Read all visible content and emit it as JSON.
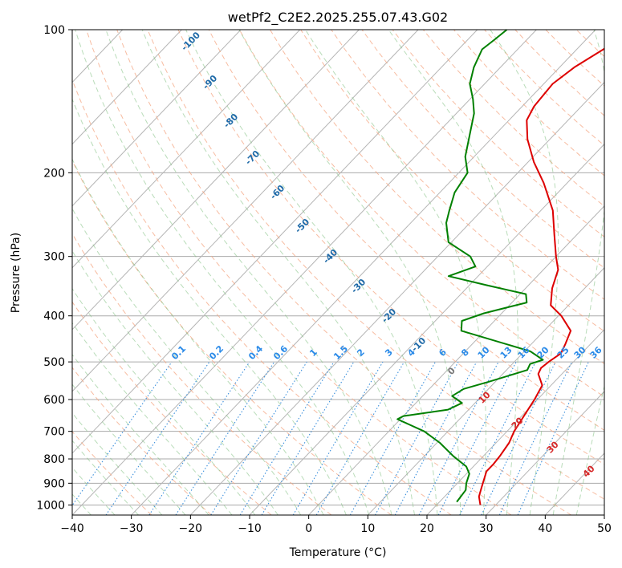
{
  "chart_data": {
    "type": "line",
    "title": "wetPf2_C2E2.2025.255.07.43.G02",
    "xlabel": "Temperature (°C)",
    "ylabel": "Pressure (hPa)",
    "xlim": [
      -40,
      50
    ],
    "ylim": [
      1050,
      100
    ],
    "x_ticks": [
      -40,
      -30,
      -20,
      -10,
      0,
      10,
      20,
      30,
      40,
      50
    ],
    "y_ticks": [
      1000,
      900,
      800,
      700,
      600,
      500,
      400,
      300,
      200,
      100
    ],
    "y_scale": "log",
    "skew": "skew-T",
    "series": [
      {
        "name": "",
        "color": "#dd0000",
        "points": [
          [
            27.4,
            1000
          ],
          [
            25.8,
            960
          ],
          [
            24.8,
            920
          ],
          [
            23.8,
            880
          ],
          [
            23.0,
            850
          ],
          [
            23.0,
            820
          ],
          [
            22.8,
            790
          ],
          [
            22.2,
            740
          ],
          [
            21.2,
            700
          ],
          [
            20.2,
            640
          ],
          [
            19.5,
            600
          ],
          [
            18.5,
            560
          ],
          [
            16.0,
            530
          ],
          [
            15.5,
            515
          ],
          [
            15.8,
            500
          ],
          [
            16.5,
            480
          ],
          [
            15.8,
            460
          ],
          [
            14.5,
            430
          ],
          [
            10.5,
            400
          ],
          [
            7.0,
            380
          ],
          [
            4.5,
            350
          ],
          [
            2.5,
            320
          ],
          [
            0.0,
            300
          ],
          [
            -3.8,
            270
          ],
          [
            -8.0,
            240
          ],
          [
            -14.0,
            210
          ],
          [
            -19.0,
            190
          ],
          [
            -23.8,
            170
          ],
          [
            -27.0,
            155
          ],
          [
            -28.0,
            145
          ],
          [
            -28.5,
            130
          ],
          [
            -27.5,
            120
          ],
          [
            -25.5,
            110
          ],
          [
            -24.5,
            105
          ],
          [
            -24.0,
            100
          ]
        ]
      },
      {
        "name": "",
        "color": "#008000",
        "points": [
          [
            22.9,
            985
          ],
          [
            22.5,
            930
          ],
          [
            21.5,
            900
          ],
          [
            20.5,
            860
          ],
          [
            18.8,
            830
          ],
          [
            15.0,
            790
          ],
          [
            10.5,
            740
          ],
          [
            6.0,
            700
          ],
          [
            -0.5,
            660
          ],
          [
            0.0,
            650
          ],
          [
            6.5,
            630
          ],
          [
            7.8,
            610
          ],
          [
            5.0,
            590
          ],
          [
            5.8,
            570
          ],
          [
            9.0,
            550
          ],
          [
            13.5,
            520
          ],
          [
            13.0,
            505
          ],
          [
            14.5,
            495
          ],
          [
            11.0,
            475
          ],
          [
            -4.0,
            430
          ],
          [
            -5.5,
            410
          ],
          [
            -3.0,
            395
          ],
          [
            2.5,
            375
          ],
          [
            1.0,
            360
          ],
          [
            -7.0,
            345
          ],
          [
            -15.0,
            330
          ],
          [
            -12.0,
            315
          ],
          [
            -14.5,
            300
          ],
          [
            -20.5,
            280
          ],
          [
            -24.0,
            255
          ],
          [
            -25.5,
            240
          ],
          [
            -27.5,
            220
          ],
          [
            -28.5,
            200
          ],
          [
            -31.5,
            185
          ],
          [
            -34.5,
            165
          ],
          [
            -37.0,
            150
          ],
          [
            -39.5,
            140
          ],
          [
            -42.5,
            130
          ],
          [
            -44.5,
            120
          ],
          [
            -46.0,
            110
          ],
          [
            -45.5,
            105
          ],
          [
            -45.0,
            100
          ]
        ]
      }
    ],
    "dry_adiabat_labels": [
      "-100",
      "-90",
      "-80",
      "-70",
      "-60",
      "-50",
      "-40",
      "-30",
      "-20",
      "-10"
    ],
    "moist_adiabat_labels": [
      "0",
      "10",
      "20",
      "30",
      "40"
    ],
    "mixing_ratio_labels": [
      "0.1",
      "0.2",
      "0.4",
      "0.6",
      "1",
      "1.5",
      "2",
      "3",
      "4",
      "6",
      "8",
      "10",
      "13",
      "16",
      "20",
      "25",
      "30",
      "36"
    ],
    "grid": true,
    "colors": {
      "isotherm": "#b5b5b5",
      "isobar": "#aaaaaa",
      "dry_adiabat": "#f4a582",
      "moist_adiabat": "#7fbf7f",
      "mixing_ratio": "#3a8fdc",
      "dry_label": "#1f6aa8",
      "moist_label": "#d62728",
      "mixing_label": "#2a8ae8",
      "zero_label": "#777777"
    }
  }
}
